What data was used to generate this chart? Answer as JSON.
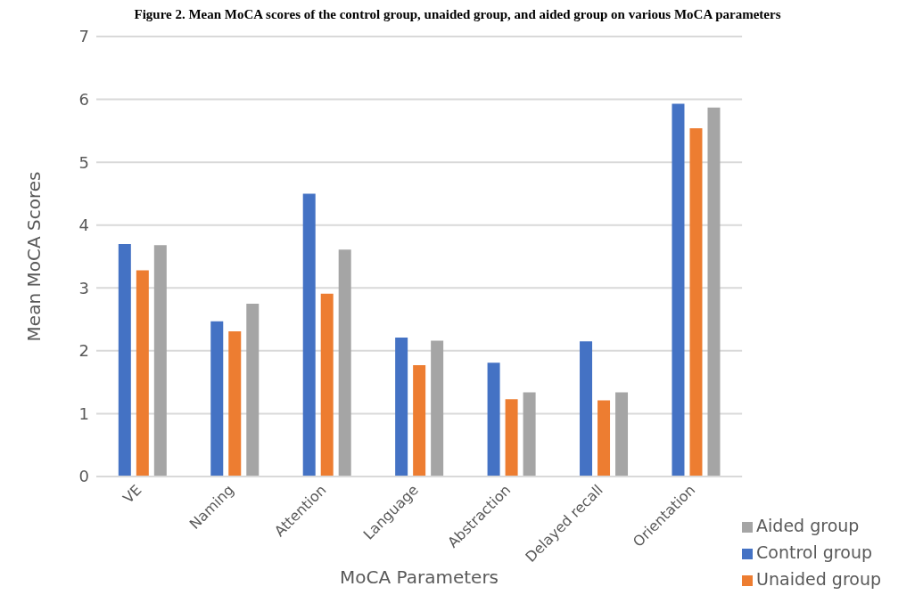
{
  "chart_data": {
    "type": "bar",
    "title": "Figure 2. Mean MoCA scores of the control group, unaided group, and aided group on various MoCA parameters",
    "xlabel": "MoCA Parameters",
    "ylabel": "Mean MoCA Scores",
    "categories": [
      "VE",
      "Naming",
      "Attention",
      "Language",
      "Abstraction",
      "Delayed recall",
      "Orientation"
    ],
    "series": [
      {
        "name": "Control group",
        "color": "#4472c4",
        "values": [
          3.7,
          2.47,
          4.5,
          2.21,
          1.81,
          2.15,
          5.93
        ]
      },
      {
        "name": "Unaided group",
        "color": "#ed7d31",
        "values": [
          3.28,
          2.31,
          2.91,
          1.77,
          1.23,
          1.21,
          5.54
        ]
      },
      {
        "name": "Aided group",
        "color": "#a5a5a5",
        "values": [
          3.68,
          2.75,
          3.61,
          2.16,
          1.34,
          1.34,
          5.87
        ]
      }
    ],
    "ylim": [
      0,
      7
    ],
    "yticks": [
      0,
      1,
      2,
      3,
      4,
      5,
      6,
      7
    ],
    "grid": "y",
    "legend": "bottom right"
  }
}
